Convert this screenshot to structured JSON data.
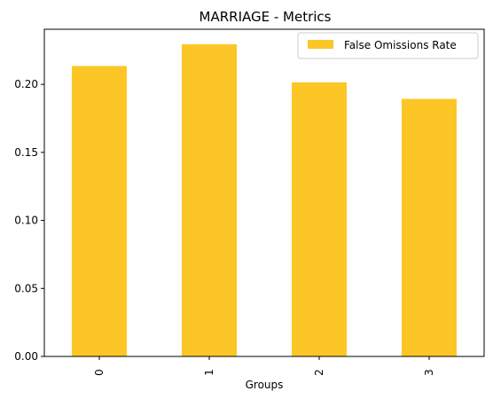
{
  "chart_data": {
    "type": "bar",
    "title": "MARRIAGE - Metrics",
    "xlabel": "Groups",
    "ylabel": "",
    "categories": [
      "0",
      "1",
      "2",
      "3"
    ],
    "series": [
      {
        "name": "False Omissions Rate",
        "values": [
          0.2135,
          0.2295,
          0.2015,
          0.1893
        ],
        "color": "#fcc626"
      }
    ],
    "ylim": [
      0,
      0.2405
    ],
    "yticks": [
      "0.00",
      "0.05",
      "0.10",
      "0.15",
      "0.20"
    ],
    "ytick_values": [
      0,
      0.05,
      0.1,
      0.15,
      0.2
    ],
    "grid": false,
    "legend_position": "top-right"
  }
}
